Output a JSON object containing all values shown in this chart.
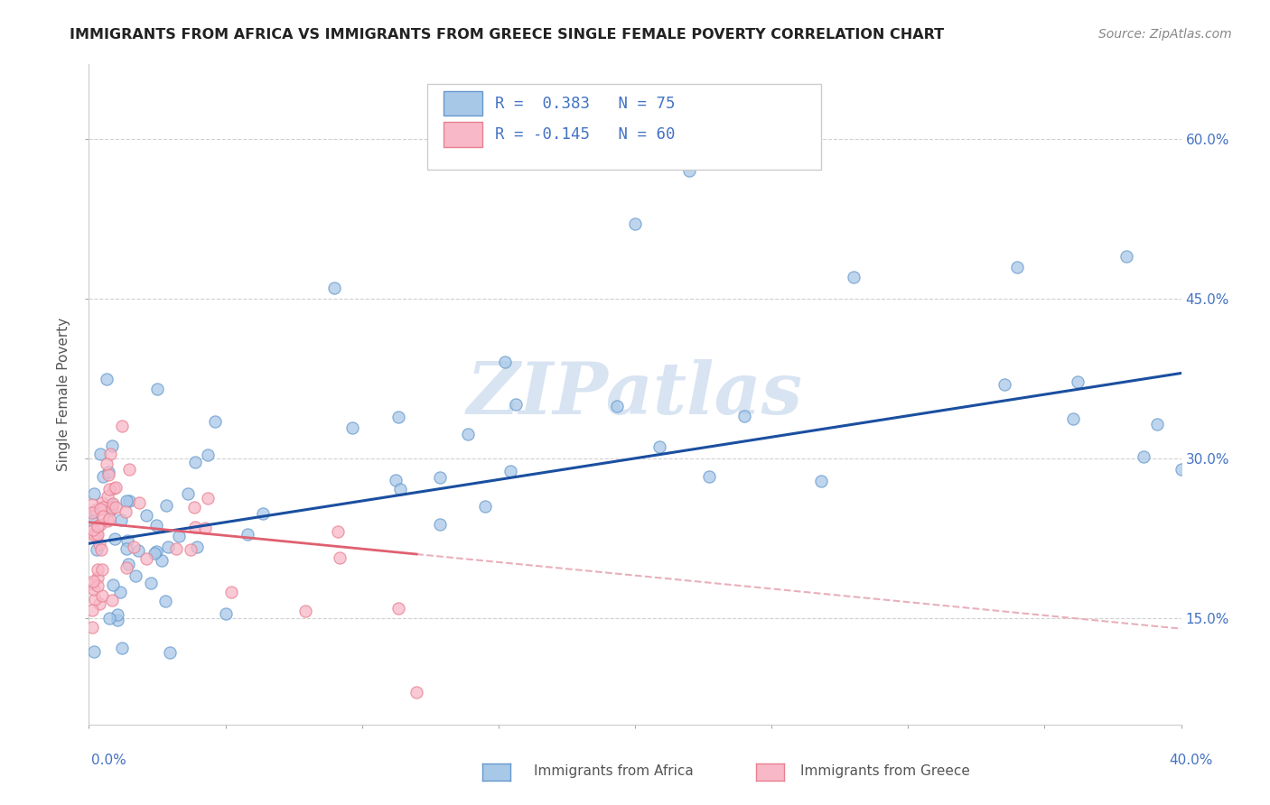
{
  "title": "IMMIGRANTS FROM AFRICA VS IMMIGRANTS FROM GREECE SINGLE FEMALE POVERTY CORRELATION CHART",
  "source": "Source: ZipAtlas.com",
  "ylabel": "Single Female Poverty",
  "xlim": [
    0.0,
    0.4
  ],
  "ylim": [
    0.05,
    0.67
  ],
  "ytick_vals": [
    0.15,
    0.3,
    0.45,
    0.6
  ],
  "ytick_labels": [
    "15.0%",
    "30.0%",
    "45.0%",
    "60.0%"
  ],
  "background_color": "#ffffff",
  "grid_color": "#d0d0d0",
  "watermark": "ZIPatlas",
  "africa_scatter_color": "#a8c8e8",
  "africa_edge_color": "#6699cc",
  "greece_scatter_color": "#f8b8c8",
  "greece_edge_color": "#e88090",
  "trend_africa_color": "#1a4fa0",
  "trend_greece_solid_color": "#e06070",
  "trend_greece_dashed_color": "#e8b0bc",
  "right_axis_color": "#4472c4",
  "legend_box_color": "#cccccc",
  "title_color": "#222222",
  "source_color": "#888888",
  "bottom_label_color": "#555555"
}
